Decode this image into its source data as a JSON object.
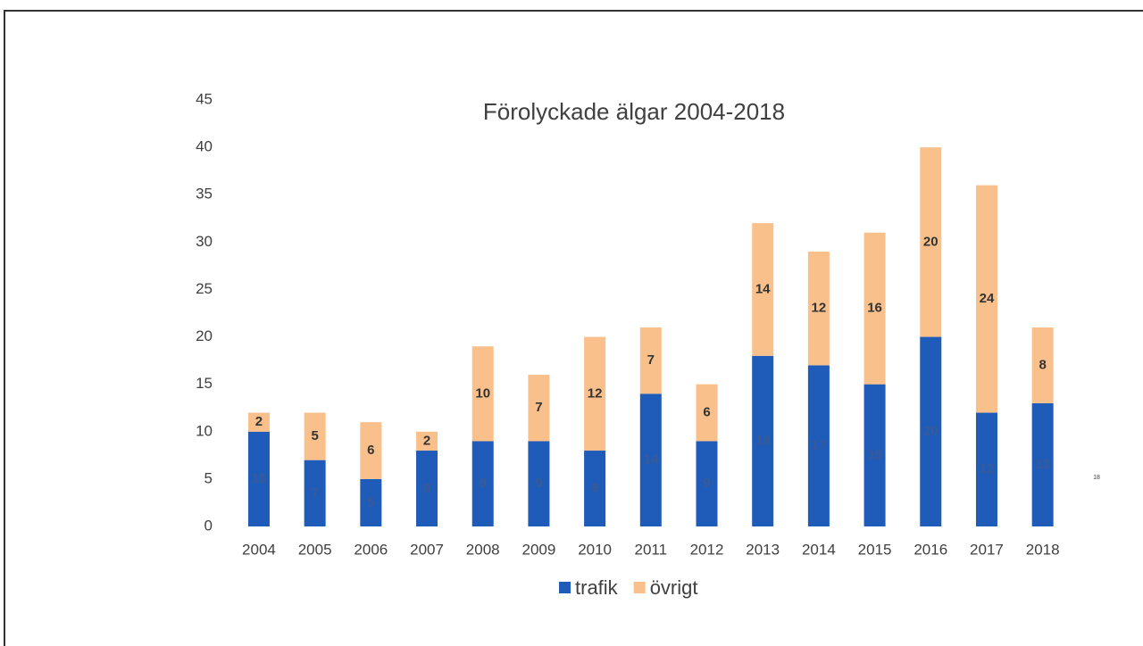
{
  "chart_data": {
    "type": "bar",
    "stacked": true,
    "title": "Förolyckade älgar 2004-2018",
    "categories": [
      "2004",
      "2005",
      "2006",
      "2007",
      "2008",
      "2009",
      "2010",
      "2011",
      "2012",
      "2013",
      "2014",
      "2015",
      "2016",
      "2017",
      "2018"
    ],
    "series": [
      {
        "name": "trafik",
        "color": "#1f5bb8",
        "values": [
          10,
          7,
          5,
          8,
          9,
          9,
          8,
          14,
          9,
          18,
          17,
          15,
          20,
          12,
          13
        ]
      },
      {
        "name": "övrigt",
        "color": "#f9c08c",
        "values": [
          2,
          5,
          6,
          2,
          10,
          7,
          12,
          7,
          6,
          14,
          12,
          16,
          20,
          24,
          8
        ]
      }
    ],
    "ylim": [
      0,
      45
    ],
    "yticks": [
      0,
      5,
      10,
      15,
      20,
      25,
      30,
      35,
      40,
      45
    ],
    "grid": false,
    "legend": "bottom"
  },
  "page_number": "18"
}
